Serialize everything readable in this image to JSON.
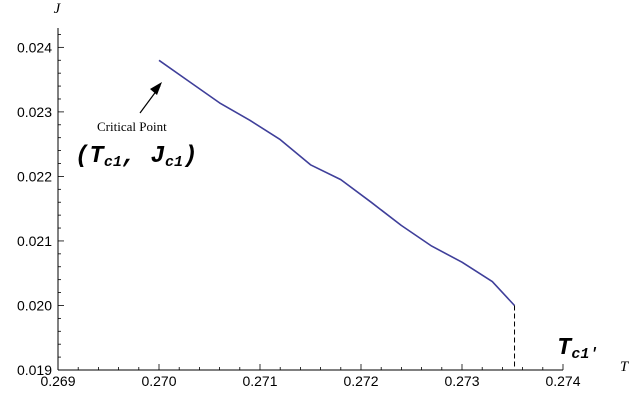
{
  "chart_data": {
    "type": "line",
    "title": "",
    "xlabel": "T",
    "ylabel": "J",
    "xlim": [
      0.269,
      0.274
    ],
    "ylim": [
      0.019,
      0.0243
    ],
    "x_ticks": [
      "0.269",
      "0.270",
      "0.271",
      "0.272",
      "0.273",
      "0.274"
    ],
    "y_ticks": [
      "0.019",
      "0.020",
      "0.021",
      "0.022",
      "0.023",
      "0.024"
    ],
    "series": [
      {
        "color": "#3f3f9a",
        "points": [
          [
            0.27,
            0.0238
          ],
          [
            0.2703,
            0.02347
          ],
          [
            0.2706,
            0.02314
          ],
          [
            0.2709,
            0.02287
          ],
          [
            0.2712,
            0.02257
          ],
          [
            0.2715,
            0.02218
          ],
          [
            0.2718,
            0.02195
          ],
          [
            0.2721,
            0.0216
          ],
          [
            0.2724,
            0.02124
          ],
          [
            0.2727,
            0.02092
          ],
          [
            0.273,
            0.02067
          ],
          [
            0.2733,
            0.02037
          ],
          [
            0.27352,
            0.02
          ]
        ]
      }
    ],
    "dashed_drop": {
      "x": 0.27352,
      "from": 0.02,
      "to": 0.019
    },
    "annotations": {
      "critical_point_label": "Critical Point",
      "critical_point_coords": {
        "open": "(",
        "t": "T",
        "t_sub": "c1",
        "sep": ", ",
        "j": "J",
        "j_sub": "c1",
        "close": ")"
      },
      "tc1_label": {
        "t": "T",
        "t_sub": "c1'"
      }
    }
  }
}
